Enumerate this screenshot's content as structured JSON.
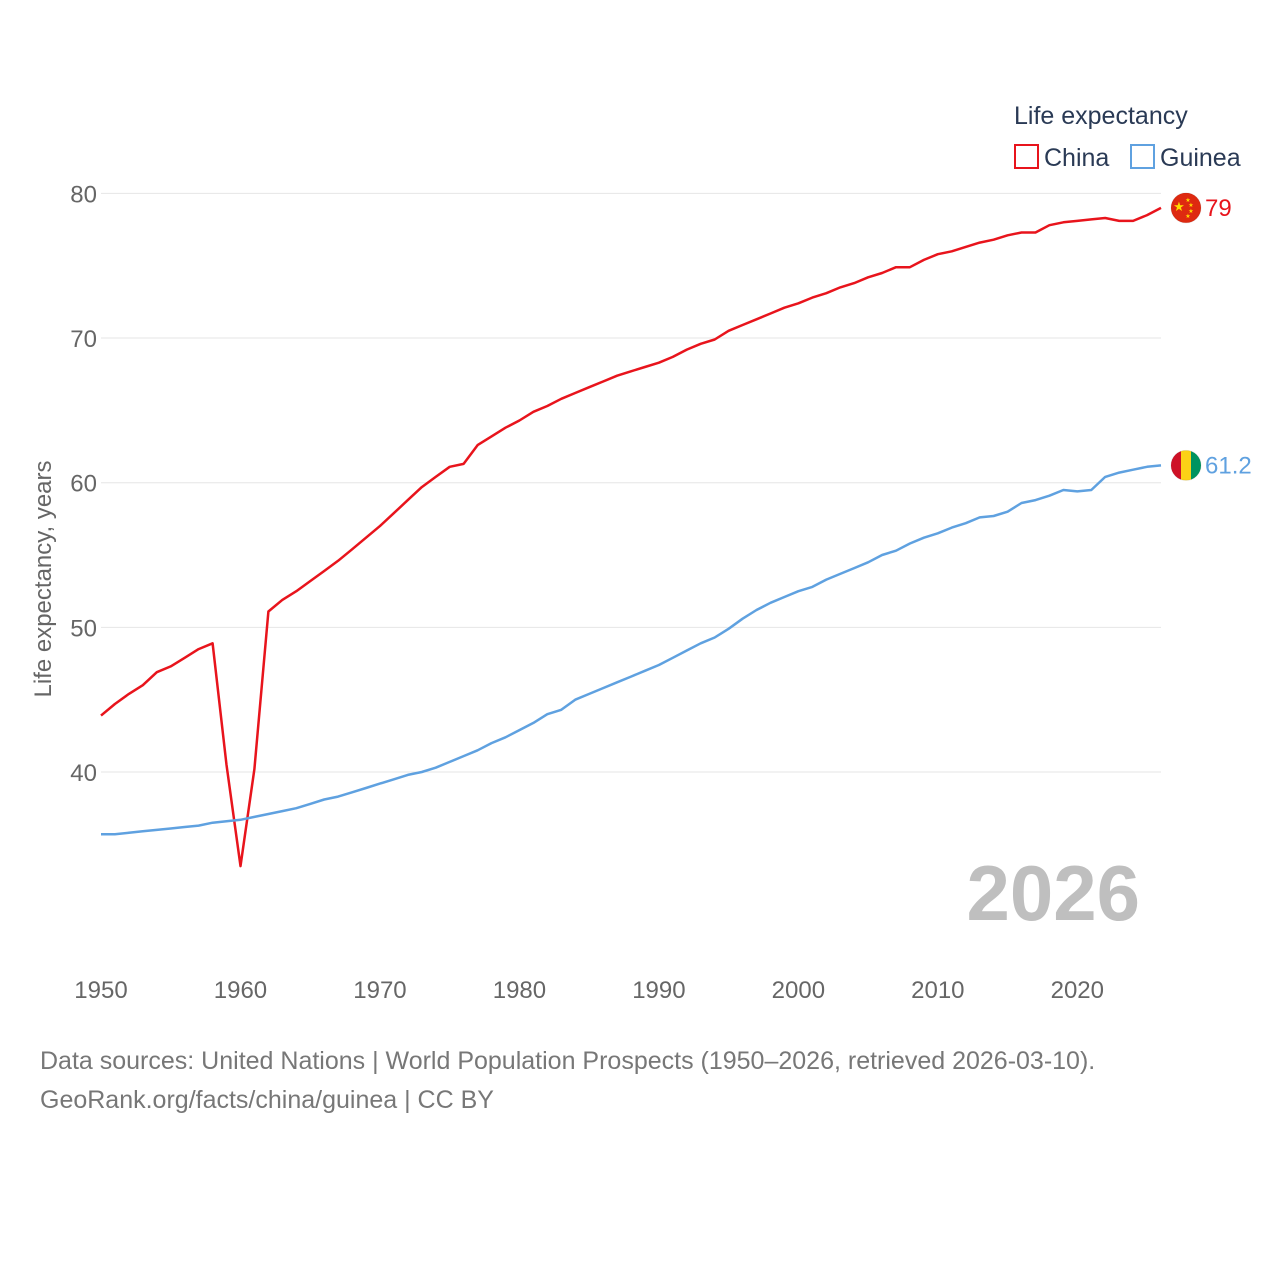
{
  "chart_data": {
    "type": "line",
    "legend_title": "Life expectancy",
    "ylabel": "Life expectancy, years",
    "xlim": [
      1950,
      2026
    ],
    "ylim": [
      31.5,
      83
    ],
    "yticks": [
      40,
      50,
      60,
      70,
      80
    ],
    "xticks": [
      1950,
      1960,
      1970,
      1980,
      1990,
      2000,
      2010,
      2020
    ],
    "gridlines": true,
    "legend_position": "top-right",
    "current_year_label": "2026",
    "series": [
      {
        "name": "China",
        "color": "#e8141c",
        "end_label": "79",
        "flag": "china",
        "points": [
          [
            1950,
            43.9
          ],
          [
            1951,
            44.7
          ],
          [
            1952,
            45.4
          ],
          [
            1953,
            46.0
          ],
          [
            1954,
            46.9
          ],
          [
            1955,
            47.3
          ],
          [
            1956,
            47.9
          ],
          [
            1957,
            48.5
          ],
          [
            1958,
            48.9
          ],
          [
            1959,
            40.5
          ],
          [
            1960,
            33.5
          ],
          [
            1961,
            40.2
          ],
          [
            1962,
            51.1
          ],
          [
            1963,
            51.9
          ],
          [
            1964,
            52.5
          ],
          [
            1965,
            53.2
          ],
          [
            1966,
            53.9
          ],
          [
            1967,
            54.6
          ],
          [
            1968,
            55.4
          ],
          [
            1969,
            56.2
          ],
          [
            1970,
            57.0
          ],
          [
            1971,
            57.9
          ],
          [
            1972,
            58.8
          ],
          [
            1973,
            59.7
          ],
          [
            1974,
            60.4
          ],
          [
            1975,
            61.1
          ],
          [
            1976,
            61.3
          ],
          [
            1977,
            62.6
          ],
          [
            1978,
            63.2
          ],
          [
            1979,
            63.8
          ],
          [
            1980,
            64.3
          ],
          [
            1981,
            64.9
          ],
          [
            1982,
            65.3
          ],
          [
            1983,
            65.8
          ],
          [
            1984,
            66.2
          ],
          [
            1985,
            66.6
          ],
          [
            1986,
            67.0
          ],
          [
            1987,
            67.4
          ],
          [
            1988,
            67.7
          ],
          [
            1989,
            68.0
          ],
          [
            1990,
            68.3
          ],
          [
            1991,
            68.7
          ],
          [
            1992,
            69.2
          ],
          [
            1993,
            69.6
          ],
          [
            1994,
            69.9
          ],
          [
            1995,
            70.5
          ],
          [
            1996,
            70.9
          ],
          [
            1997,
            71.3
          ],
          [
            1998,
            71.7
          ],
          [
            1999,
            72.1
          ],
          [
            2000,
            72.4
          ],
          [
            2001,
            72.8
          ],
          [
            2002,
            73.1
          ],
          [
            2003,
            73.5
          ],
          [
            2004,
            73.8
          ],
          [
            2005,
            74.2
          ],
          [
            2006,
            74.5
          ],
          [
            2007,
            74.9
          ],
          [
            2008,
            74.9
          ],
          [
            2009,
            75.4
          ],
          [
            2010,
            75.8
          ],
          [
            2011,
            76.0
          ],
          [
            2012,
            76.3
          ],
          [
            2013,
            76.6
          ],
          [
            2014,
            76.8
          ],
          [
            2015,
            77.1
          ],
          [
            2016,
            77.3
          ],
          [
            2017,
            77.3
          ],
          [
            2018,
            77.8
          ],
          [
            2019,
            78.0
          ],
          [
            2020,
            78.1
          ],
          [
            2021,
            78.2
          ],
          [
            2022,
            78.3
          ],
          [
            2023,
            78.1
          ],
          [
            2024,
            78.1
          ],
          [
            2025,
            78.5
          ],
          [
            2026,
            79.0
          ]
        ]
      },
      {
        "name": "Guinea",
        "color": "#5fa1e0",
        "end_label": "61.2",
        "flag": "guinea",
        "points": [
          [
            1950,
            35.7
          ],
          [
            1951,
            35.7
          ],
          [
            1952,
            35.8
          ],
          [
            1953,
            35.9
          ],
          [
            1954,
            36.0
          ],
          [
            1955,
            36.1
          ],
          [
            1956,
            36.2
          ],
          [
            1957,
            36.3
          ],
          [
            1958,
            36.5
          ],
          [
            1959,
            36.6
          ],
          [
            1960,
            36.7
          ],
          [
            1961,
            36.9
          ],
          [
            1962,
            37.1
          ],
          [
            1963,
            37.3
          ],
          [
            1964,
            37.5
          ],
          [
            1965,
            37.8
          ],
          [
            1966,
            38.1
          ],
          [
            1967,
            38.3
          ],
          [
            1968,
            38.6
          ],
          [
            1969,
            38.9
          ],
          [
            1970,
            39.2
          ],
          [
            1971,
            39.5
          ],
          [
            1972,
            39.8
          ],
          [
            1973,
            40.0
          ],
          [
            1974,
            40.3
          ],
          [
            1975,
            40.7
          ],
          [
            1976,
            41.1
          ],
          [
            1977,
            41.5
          ],
          [
            1978,
            42.0
          ],
          [
            1979,
            42.4
          ],
          [
            1980,
            42.9
          ],
          [
            1981,
            43.4
          ],
          [
            1982,
            44.0
          ],
          [
            1983,
            44.3
          ],
          [
            1984,
            45.0
          ],
          [
            1985,
            45.4
          ],
          [
            1986,
            45.8
          ],
          [
            1987,
            46.2
          ],
          [
            1988,
            46.6
          ],
          [
            1989,
            47.0
          ],
          [
            1990,
            47.4
          ],
          [
            1991,
            47.9
          ],
          [
            1992,
            48.4
          ],
          [
            1993,
            48.9
          ],
          [
            1994,
            49.3
          ],
          [
            1995,
            49.9
          ],
          [
            1996,
            50.6
          ],
          [
            1997,
            51.2
          ],
          [
            1998,
            51.7
          ],
          [
            1999,
            52.1
          ],
          [
            2000,
            52.5
          ],
          [
            2001,
            52.8
          ],
          [
            2002,
            53.3
          ],
          [
            2003,
            53.7
          ],
          [
            2004,
            54.1
          ],
          [
            2005,
            54.5
          ],
          [
            2006,
            55.0
          ],
          [
            2007,
            55.3
          ],
          [
            2008,
            55.8
          ],
          [
            2009,
            56.2
          ],
          [
            2010,
            56.5
          ],
          [
            2011,
            56.9
          ],
          [
            2012,
            57.2
          ],
          [
            2013,
            57.6
          ],
          [
            2014,
            57.7
          ],
          [
            2015,
            58.0
          ],
          [
            2016,
            58.6
          ],
          [
            2017,
            58.8
          ],
          [
            2018,
            59.1
          ],
          [
            2019,
            59.5
          ],
          [
            2020,
            59.4
          ],
          [
            2021,
            59.5
          ],
          [
            2022,
            60.4
          ],
          [
            2023,
            60.7
          ],
          [
            2024,
            60.9
          ],
          [
            2025,
            61.1
          ],
          [
            2026,
            61.2
          ]
        ]
      }
    ]
  },
  "footer": {
    "line1": "Data sources: United Nations | World Population Prospects (1950–2026, retrieved 2026-03-10).",
    "line2": "GeoRank.org/facts/china/guinea | CC BY"
  }
}
